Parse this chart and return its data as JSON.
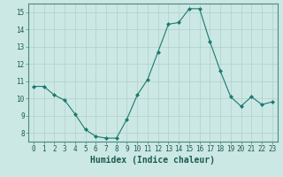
{
  "x": [
    0,
    1,
    2,
    3,
    4,
    5,
    6,
    7,
    8,
    9,
    10,
    11,
    12,
    13,
    14,
    15,
    16,
    17,
    18,
    19,
    20,
    21,
    22,
    23
  ],
  "y": [
    10.7,
    10.7,
    10.2,
    9.9,
    9.1,
    8.2,
    7.8,
    7.7,
    7.7,
    8.8,
    10.2,
    11.1,
    12.7,
    14.3,
    14.4,
    15.2,
    15.2,
    13.3,
    11.6,
    10.1,
    9.55,
    10.1,
    9.65,
    9.8
  ],
  "line_color": "#1a7a6e",
  "marker": "D",
  "marker_size": 2,
  "bg_color": "#cce8e4",
  "grid_color": "#b0cfcc",
  "xlabel": "Humidex (Indice chaleur)",
  "ylim": [
    7.5,
    15.5
  ],
  "xlim": [
    -0.5,
    23.5
  ],
  "yticks": [
    8,
    9,
    10,
    11,
    12,
    13,
    14,
    15
  ],
  "xticks": [
    0,
    1,
    2,
    3,
    4,
    5,
    6,
    7,
    8,
    9,
    10,
    11,
    12,
    13,
    14,
    15,
    16,
    17,
    18,
    19,
    20,
    21,
    22,
    23
  ],
  "tick_fontsize": 5.5,
  "label_fontsize": 7,
  "spine_color": "#4a8a80"
}
